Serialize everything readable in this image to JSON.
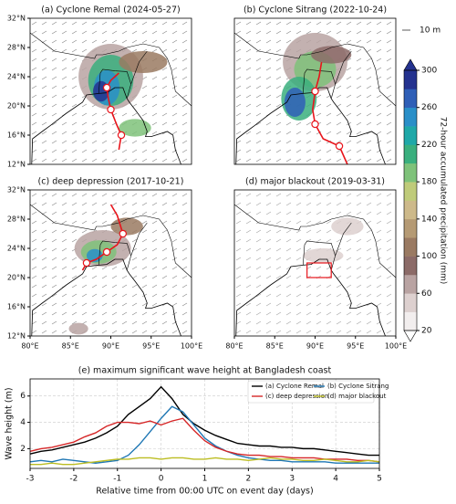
{
  "maps": [
    {
      "title": "(a) Cyclone Remal (2024-05-27)"
    },
    {
      "title": "(b) Cyclone Sitrang (2022-10-24)"
    },
    {
      "title": "(c) deep depression (2017-10-21)"
    },
    {
      "title": "(d) major blackout (2019-03-31)"
    }
  ],
  "map_xticks": [
    "80°E",
    "85°E",
    "90°E",
    "95°E",
    "100°E"
  ],
  "map_yticks": [
    "12°N",
    "16°N",
    "20°N",
    "24°N",
    "28°N",
    "32°N"
  ],
  "quiver_key": "10 m",
  "chart_data": [
    {
      "type": "colorbar",
      "label": "72-hour accumulated precipitation (mm)",
      "ylim": [
        20,
        300
      ],
      "yticks": [
        20,
        60,
        100,
        140,
        180,
        220,
        260,
        300
      ],
      "colors": [
        "#f2eeee",
        "#ddd0cf",
        "#b9a3a2",
        "#8c6b68",
        "#9a7a62",
        "#b59a74",
        "#cdb98a",
        "#bfcb7a",
        "#7fc27a",
        "#3aaf7e",
        "#1fa8a8",
        "#2a8fc8",
        "#2f5fb7",
        "#24328f"
      ]
    },
    {
      "type": "line",
      "title": "(e) maximum significant wave height at Bangladesh coast",
      "x_label": "Relative time from 00:00 UTC on event day (days)",
      "y_label": "Wave height (m)",
      "x": [
        -3,
        -2.75,
        -2.5,
        -2.25,
        -2,
        -1.75,
        -1.5,
        -1.25,
        -1,
        -0.75,
        -0.5,
        -0.25,
        0,
        0.25,
        0.5,
        0.75,
        1,
        1.25,
        1.5,
        1.75,
        2,
        2.25,
        2.5,
        2.75,
        3,
        3.25,
        3.5,
        3.75,
        4,
        4.25,
        4.5,
        4.75,
        5
      ],
      "xlim": [
        -3,
        5
      ],
      "xticks": [
        -3,
        -2,
        -1,
        0,
        1,
        2,
        3,
        4,
        5
      ],
      "ylim": [
        0.5,
        7.3
      ],
      "yticks": [
        2,
        4,
        6
      ],
      "grid": true,
      "legend": "upper right",
      "series": [
        {
          "name": "(a) Cyclone Remal",
          "color": "#000000",
          "values": [
            1.6,
            1.8,
            1.9,
            2.1,
            2.3,
            2.5,
            2.8,
            3.2,
            3.7,
            4.6,
            5.2,
            5.8,
            6.7,
            5.8,
            4.6,
            3.9,
            3.4,
            3.0,
            2.7,
            2.4,
            2.3,
            2.2,
            2.2,
            2.1,
            2.1,
            2.0,
            2.0,
            1.9,
            1.8,
            1.7,
            1.6,
            1.5,
            1.5
          ]
        },
        {
          "name": "(b) Cyclone Sitrang",
          "color": "#1f77b4",
          "values": [
            1.0,
            1.1,
            1.0,
            1.2,
            1.1,
            1.0,
            0.9,
            1.0,
            1.1,
            1.5,
            2.3,
            3.3,
            4.3,
            5.2,
            4.8,
            3.8,
            2.8,
            2.2,
            1.8,
            1.5,
            1.3,
            1.2,
            1.1,
            1.1,
            1.0,
            1.0,
            1.0,
            1.0,
            0.9,
            0.9,
            0.9,
            0.9,
            0.9
          ]
        },
        {
          "name": "(c) deep depression",
          "color": "#d62728",
          "values": [
            1.8,
            2.0,
            2.1,
            2.3,
            2.5,
            2.9,
            3.2,
            3.7,
            4.0,
            4.0,
            3.9,
            4.1,
            3.8,
            4.1,
            4.3,
            3.4,
            2.6,
            2.1,
            1.8,
            1.6,
            1.5,
            1.5,
            1.4,
            1.4,
            1.3,
            1.3,
            1.3,
            1.2,
            1.2,
            1.2,
            1.1,
            1.1,
            1.0
          ]
        },
        {
          "name": "(d) major blackout",
          "color": "#bcbd22",
          "values": [
            0.8,
            0.8,
            0.9,
            0.8,
            0.8,
            0.9,
            1.0,
            1.1,
            1.2,
            1.2,
            1.3,
            1.3,
            1.2,
            1.3,
            1.3,
            1.2,
            1.2,
            1.3,
            1.2,
            1.2,
            1.1,
            1.2,
            1.3,
            1.2,
            1.2,
            1.1,
            1.1,
            1.2,
            1.1,
            1.0,
            1.0,
            1.1,
            1.0
          ]
        }
      ]
    }
  ]
}
